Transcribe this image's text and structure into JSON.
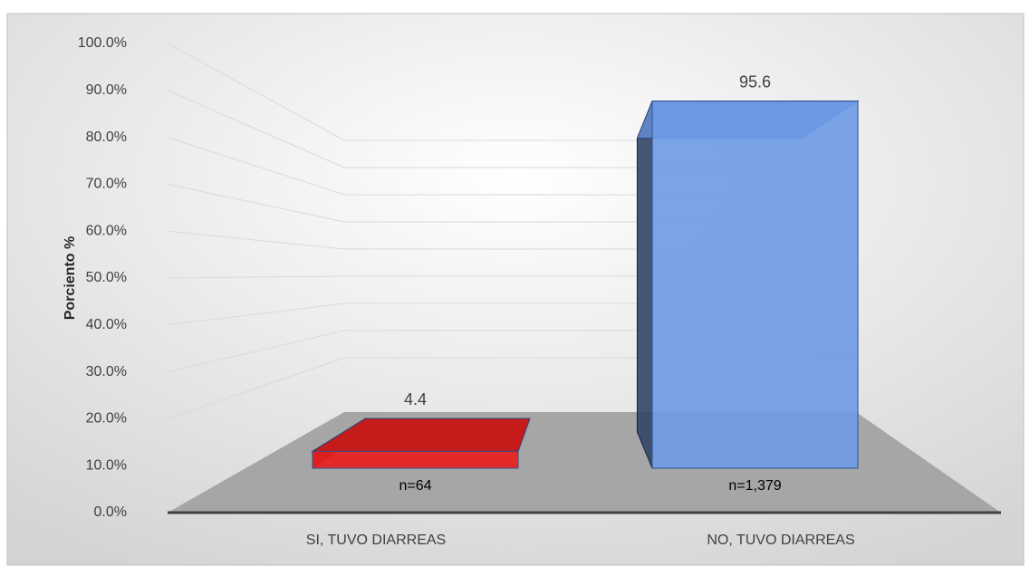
{
  "chart_data": {
    "type": "bar3d",
    "y_axis_label": "Porciento %",
    "categories": [
      "SI, TUVO DIARREAS",
      "NO, TUVO DIARREAS"
    ],
    "values": [
      4.4,
      95.6
    ],
    "colors": [
      "#e8201e",
      "#6f9be6"
    ],
    "annotations": [
      "n=64",
      "n=1,379"
    ],
    "ylim": [
      0,
      100
    ],
    "yticks": [
      {
        "value": 0,
        "label": "0.0%"
      },
      {
        "value": 10,
        "label": "10.0%"
      },
      {
        "value": 20,
        "label": "20.0%"
      },
      {
        "value": 30,
        "label": "30.0%"
      },
      {
        "value": 40,
        "label": "40.0%"
      },
      {
        "value": 50,
        "label": "50.0%"
      },
      {
        "value": 60,
        "label": "60.0%"
      },
      {
        "value": 70,
        "label": "70.0%"
      },
      {
        "value": 80,
        "label": "80.0%"
      },
      {
        "value": 90,
        "label": "90.0%"
      },
      {
        "value": 100,
        "label": "100.0%"
      }
    ],
    "grid": true
  }
}
